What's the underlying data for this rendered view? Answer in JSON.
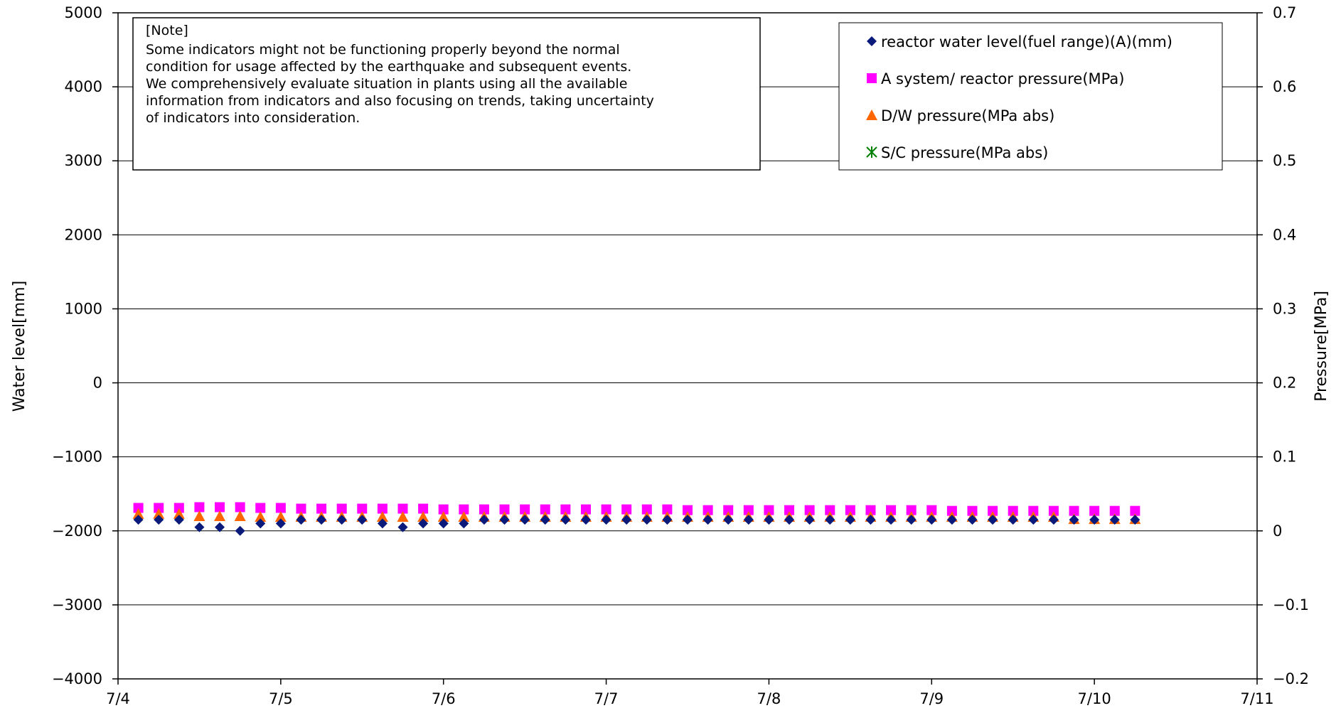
{
  "chart_data": {
    "type": "scatter",
    "title": "",
    "xlabel": "",
    "ylabel": "Water level[mm]",
    "y2label": "Pressure[MPa]",
    "x_tick_labels": [
      "7/4",
      "7/5",
      "7/6",
      "7/7",
      "7/8",
      "7/9",
      "7/10",
      "7/11"
    ],
    "xlim": [
      "7/4",
      "7/11"
    ],
    "ylim": [
      -4000,
      5000
    ],
    "y_ticks": [
      5000,
      4000,
      3000,
      2000,
      1000,
      0,
      -1000,
      -2000,
      -3000,
      -4000
    ],
    "y2lim": [
      -0.2,
      0.7
    ],
    "y2_ticks": [
      0.7,
      0.6,
      0.5,
      0.4,
      0.3,
      0.2,
      0.1,
      0,
      -0.1,
      -0.2
    ],
    "grid": "horizontal",
    "legend_position": "top-right",
    "note": {
      "heading": "[Note]",
      "lines": [
        "Some indicators might not be functioning properly beyond the normal",
        "condition for usage affected by the earthquake and subsequent events.",
        "We comprehensively evaluate situation in plants using all the available",
        "information from indicators and also focusing on trends, taking uncertainty",
        "of indicators into consideration."
      ]
    },
    "x_points": [
      "7/4 03:00",
      "7/4 06:00",
      "7/4 09:00",
      "7/4 12:00",
      "7/4 15:00",
      "7/4 18:00",
      "7/4 21:00",
      "7/5 00:00",
      "7/5 03:00",
      "7/5 06:00",
      "7/5 09:00",
      "7/5 12:00",
      "7/5 15:00",
      "7/5 18:00",
      "7/5 21:00",
      "7/6 00:00",
      "7/6 03:00",
      "7/6 06:00",
      "7/6 09:00",
      "7/6 12:00",
      "7/6 15:00",
      "7/6 18:00",
      "7/6 21:00",
      "7/7 00:00",
      "7/7 03:00",
      "7/7 06:00",
      "7/7 09:00",
      "7/7 12:00",
      "7/7 15:00",
      "7/7 18:00",
      "7/7 21:00",
      "7/8 00:00",
      "7/8 03:00",
      "7/8 06:00",
      "7/8 09:00",
      "7/8 12:00",
      "7/8 15:00",
      "7/8 18:00",
      "7/8 21:00",
      "7/9 00:00",
      "7/9 03:00",
      "7/9 06:00",
      "7/9 09:00",
      "7/9 12:00",
      "7/9 15:00",
      "7/9 18:00",
      "7/9 21:00",
      "7/10 00:00",
      "7/10 03:00",
      "7/10 06:00"
    ],
    "series": [
      {
        "name": "reactor water level(fuel range)(A)(mm)",
        "axis": "left",
        "marker": "diamond",
        "color": "#0a1a7a",
        "values": [
          -1850,
          -1850,
          -1850,
          -1950,
          -1950,
          -2000,
          -1900,
          -1900,
          -1850,
          -1850,
          -1850,
          -1850,
          -1900,
          -1950,
          -1900,
          -1900,
          -1900,
          -1850,
          -1850,
          -1850,
          -1850,
          -1850,
          -1850,
          -1850,
          -1850,
          -1850,
          -1850,
          -1850,
          -1850,
          -1850,
          -1850,
          -1850,
          -1850,
          -1850,
          -1850,
          -1850,
          -1850,
          -1850,
          -1850,
          -1850,
          -1850,
          -1850,
          -1850,
          -1850,
          -1850,
          -1850,
          -1850,
          -1850,
          -1850,
          -1850
        ]
      },
      {
        "name": "A system/ reactor pressure(MPa)",
        "axis": "right",
        "marker": "square",
        "color": "#ff00ff",
        "values": [
          0.031,
          0.031,
          0.031,
          0.032,
          0.032,
          0.032,
          0.031,
          0.031,
          0.03,
          0.03,
          0.03,
          0.03,
          0.03,
          0.03,
          0.03,
          0.029,
          0.029,
          0.029,
          0.029,
          0.029,
          0.029,
          0.029,
          0.029,
          0.029,
          0.029,
          0.029,
          0.029,
          0.028,
          0.028,
          0.028,
          0.028,
          0.028,
          0.028,
          0.028,
          0.028,
          0.028,
          0.028,
          0.028,
          0.028,
          0.028,
          0.027,
          0.027,
          0.027,
          0.027,
          0.027,
          0.027,
          0.027,
          0.027,
          0.027,
          0.027
        ]
      },
      {
        "name": "D/W pressure(MPa abs)",
        "axis": "right",
        "marker": "triangle",
        "color": "#ff6600",
        "values": [
          0.023,
          0.023,
          0.023,
          0.02,
          0.02,
          0.02,
          0.019,
          0.019,
          0.019,
          0.019,
          0.019,
          0.019,
          0.019,
          0.019,
          0.019,
          0.019,
          0.019,
          0.019,
          0.019,
          0.019,
          0.019,
          0.019,
          0.019,
          0.019,
          0.019,
          0.019,
          0.019,
          0.019,
          0.019,
          0.019,
          0.019,
          0.019,
          0.019,
          0.019,
          0.019,
          0.019,
          0.019,
          0.019,
          0.019,
          0.019,
          0.019,
          0.019,
          0.019,
          0.019,
          0.019,
          0.019,
          0.016,
          0.016,
          0.016,
          0.016
        ]
      },
      {
        "name": "S/C pressure(MPa abs)",
        "axis": "right",
        "marker": "asterisk",
        "color": "#008000",
        "values": []
      }
    ]
  }
}
